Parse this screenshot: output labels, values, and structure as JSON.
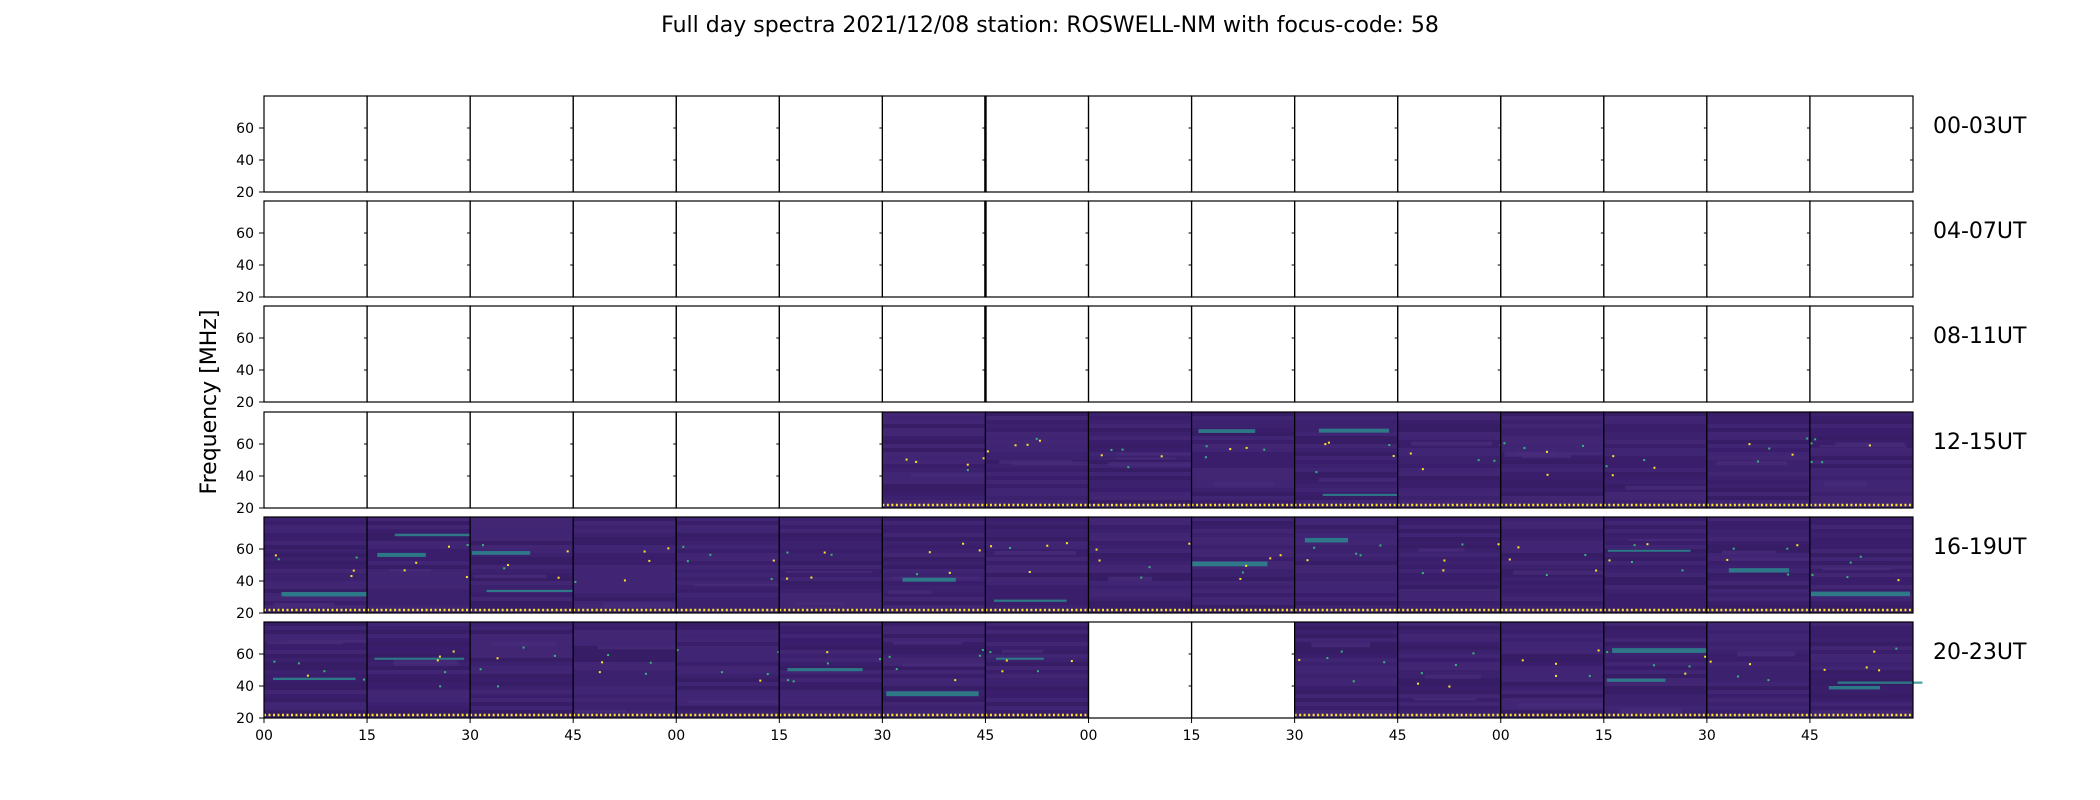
{
  "chart_data": {
    "type": "heatmap",
    "title": "Full day spectra 2021/12/08 station: ROSWELL-NM with focus-code: 58",
    "ylabel": "Frequency [MHz]",
    "ylim": [
      20,
      80
    ],
    "yticks": [
      "20",
      "40",
      "60"
    ],
    "xticks": [
      "00",
      "15",
      "30",
      "45",
      "00",
      "15",
      "30",
      "45",
      "00",
      "15",
      "30",
      "45",
      "00",
      "15",
      "30",
      "45"
    ],
    "grid": false,
    "rows": [
      {
        "label": "00-03UT",
        "panels_with_data": [
          false,
          false,
          false,
          false,
          false,
          false,
          false,
          false,
          false,
          false,
          false,
          false,
          false,
          false,
          false,
          false
        ]
      },
      {
        "label": "04-07UT",
        "panels_with_data": [
          false,
          false,
          false,
          false,
          false,
          false,
          false,
          false,
          false,
          false,
          false,
          false,
          false,
          false,
          false,
          false
        ]
      },
      {
        "label": "08-11UT",
        "panels_with_data": [
          false,
          false,
          false,
          false,
          false,
          false,
          false,
          false,
          false,
          false,
          false,
          false,
          false,
          false,
          false,
          false
        ]
      },
      {
        "label": "12-15UT",
        "panels_with_data": [
          false,
          false,
          false,
          false,
          false,
          false,
          true,
          true,
          true,
          true,
          true,
          true,
          true,
          true,
          true,
          true
        ]
      },
      {
        "label": "16-19UT",
        "panels_with_data": [
          true,
          true,
          true,
          true,
          true,
          true,
          true,
          true,
          true,
          true,
          true,
          true,
          true,
          true,
          true,
          true
        ]
      },
      {
        "label": "20-23UT",
        "panels_with_data": [
          true,
          true,
          true,
          true,
          true,
          true,
          true,
          true,
          false,
          false,
          true,
          true,
          true,
          true,
          true,
          true
        ]
      }
    ]
  },
  "colors": {
    "background_low": "#3b1e6b",
    "background_mid": "#472c7a",
    "band_teal": "#2a8f8e",
    "band_green": "#35b779",
    "highlight_yellow": "#fde725"
  }
}
